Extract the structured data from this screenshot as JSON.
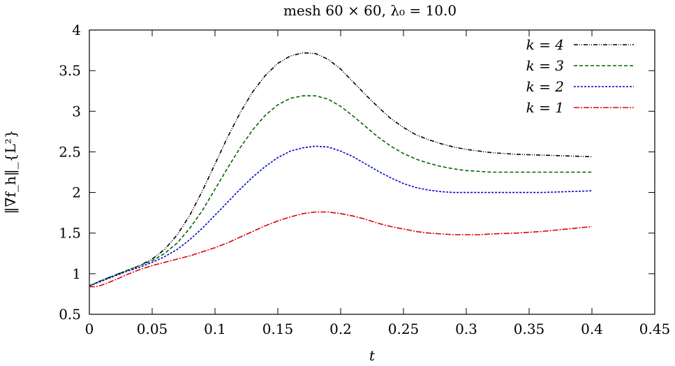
{
  "chart_data": {
    "type": "line",
    "title": "mesh 60 × 60, λ₀ = 10.0",
    "xlabel": "t",
    "ylabel": "‖∇f_h‖_{L²}",
    "xlim": [
      0,
      0.45
    ],
    "ylim": [
      0.5,
      4
    ],
    "x_ticks": [
      "0",
      "0.05",
      "0.1",
      "0.15",
      "0.2",
      "0.25",
      "0.3",
      "0.35",
      "0.4",
      "0.45"
    ],
    "y_ticks": [
      "0.5",
      "1",
      "1.5",
      "2",
      "2.5",
      "3",
      "3.5",
      "4"
    ],
    "legend_position": "top-right",
    "series": [
      {
        "name": "k = 4",
        "color": "#000000",
        "dash": "6,2,1,2,1,2",
        "points": [
          [
            0,
            0.85
          ],
          [
            0.01,
            0.92
          ],
          [
            0.02,
            0.98
          ],
          [
            0.03,
            1.04
          ],
          [
            0.04,
            1.1
          ],
          [
            0.05,
            1.18
          ],
          [
            0.06,
            1.3
          ],
          [
            0.07,
            1.48
          ],
          [
            0.08,
            1.72
          ],
          [
            0.09,
            2.02
          ],
          [
            0.1,
            2.35
          ],
          [
            0.11,
            2.68
          ],
          [
            0.12,
            2.98
          ],
          [
            0.13,
            3.24
          ],
          [
            0.14,
            3.44
          ],
          [
            0.15,
            3.59
          ],
          [
            0.16,
            3.68
          ],
          [
            0.17,
            3.72
          ],
          [
            0.18,
            3.71
          ],
          [
            0.19,
            3.64
          ],
          [
            0.2,
            3.52
          ],
          [
            0.21,
            3.36
          ],
          [
            0.22,
            3.2
          ],
          [
            0.23,
            3.05
          ],
          [
            0.24,
            2.91
          ],
          [
            0.25,
            2.8
          ],
          [
            0.26,
            2.71
          ],
          [
            0.27,
            2.65
          ],
          [
            0.28,
            2.6
          ],
          [
            0.29,
            2.56
          ],
          [
            0.3,
            2.53
          ],
          [
            0.32,
            2.49
          ],
          [
            0.34,
            2.47
          ],
          [
            0.36,
            2.46
          ],
          [
            0.38,
            2.45
          ],
          [
            0.4,
            2.44
          ]
        ]
      },
      {
        "name": "k = 3",
        "color": "#006400",
        "dash": "5,3",
        "points": [
          [
            0,
            0.85
          ],
          [
            0.01,
            0.92
          ],
          [
            0.02,
            0.98
          ],
          [
            0.03,
            1.04
          ],
          [
            0.04,
            1.1
          ],
          [
            0.05,
            1.16
          ],
          [
            0.06,
            1.25
          ],
          [
            0.07,
            1.38
          ],
          [
            0.08,
            1.56
          ],
          [
            0.09,
            1.78
          ],
          [
            0.1,
            2.04
          ],
          [
            0.11,
            2.3
          ],
          [
            0.12,
            2.55
          ],
          [
            0.13,
            2.77
          ],
          [
            0.14,
            2.95
          ],
          [
            0.15,
            3.08
          ],
          [
            0.16,
            3.16
          ],
          [
            0.17,
            3.19
          ],
          [
            0.18,
            3.19
          ],
          [
            0.19,
            3.15
          ],
          [
            0.2,
            3.06
          ],
          [
            0.21,
            2.94
          ],
          [
            0.22,
            2.81
          ],
          [
            0.23,
            2.68
          ],
          [
            0.24,
            2.57
          ],
          [
            0.25,
            2.48
          ],
          [
            0.26,
            2.41
          ],
          [
            0.27,
            2.36
          ],
          [
            0.28,
            2.32
          ],
          [
            0.29,
            2.29
          ],
          [
            0.3,
            2.27
          ],
          [
            0.32,
            2.25
          ],
          [
            0.34,
            2.25
          ],
          [
            0.36,
            2.25
          ],
          [
            0.38,
            2.25
          ],
          [
            0.4,
            2.25
          ]
        ]
      },
      {
        "name": "k = 2",
        "color": "#0000CC",
        "dash": "3,2",
        "points": [
          [
            0,
            0.85
          ],
          [
            0.01,
            0.91
          ],
          [
            0.02,
            0.97
          ],
          [
            0.03,
            1.03
          ],
          [
            0.04,
            1.08
          ],
          [
            0.05,
            1.14
          ],
          [
            0.06,
            1.21
          ],
          [
            0.07,
            1.3
          ],
          [
            0.08,
            1.42
          ],
          [
            0.09,
            1.56
          ],
          [
            0.1,
            1.72
          ],
          [
            0.11,
            1.88
          ],
          [
            0.12,
            2.04
          ],
          [
            0.13,
            2.19
          ],
          [
            0.14,
            2.32
          ],
          [
            0.15,
            2.43
          ],
          [
            0.16,
            2.51
          ],
          [
            0.17,
            2.55
          ],
          [
            0.18,
            2.57
          ],
          [
            0.19,
            2.56
          ],
          [
            0.2,
            2.51
          ],
          [
            0.21,
            2.44
          ],
          [
            0.22,
            2.35
          ],
          [
            0.23,
            2.26
          ],
          [
            0.24,
            2.18
          ],
          [
            0.25,
            2.11
          ],
          [
            0.26,
            2.06
          ],
          [
            0.27,
            2.03
          ],
          [
            0.28,
            2.01
          ],
          [
            0.29,
            2.0
          ],
          [
            0.3,
            2.0
          ],
          [
            0.32,
            2.0
          ],
          [
            0.34,
            2.0
          ],
          [
            0.36,
            2.0
          ],
          [
            0.38,
            2.01
          ],
          [
            0.4,
            2.02
          ]
        ]
      },
      {
        "name": "k = 1",
        "color": "#DD0000",
        "dash": "8,2,2,2",
        "points": [
          [
            0,
            0.84
          ],
          [
            0.005,
            0.84
          ],
          [
            0.01,
            0.86
          ],
          [
            0.02,
            0.92
          ],
          [
            0.03,
            0.99
          ],
          [
            0.04,
            1.05
          ],
          [
            0.05,
            1.1
          ],
          [
            0.06,
            1.14
          ],
          [
            0.07,
            1.18
          ],
          [
            0.08,
            1.22
          ],
          [
            0.09,
            1.27
          ],
          [
            0.1,
            1.32
          ],
          [
            0.11,
            1.38
          ],
          [
            0.12,
            1.45
          ],
          [
            0.13,
            1.52
          ],
          [
            0.14,
            1.59
          ],
          [
            0.15,
            1.65
          ],
          [
            0.16,
            1.7
          ],
          [
            0.17,
            1.74
          ],
          [
            0.18,
            1.76
          ],
          [
            0.19,
            1.76
          ],
          [
            0.2,
            1.74
          ],
          [
            0.21,
            1.71
          ],
          [
            0.22,
            1.67
          ],
          [
            0.23,
            1.62
          ],
          [
            0.24,
            1.58
          ],
          [
            0.25,
            1.55
          ],
          [
            0.26,
            1.52
          ],
          [
            0.27,
            1.5
          ],
          [
            0.28,
            1.49
          ],
          [
            0.29,
            1.48
          ],
          [
            0.3,
            1.48
          ],
          [
            0.31,
            1.48
          ],
          [
            0.32,
            1.49
          ],
          [
            0.34,
            1.5
          ],
          [
            0.36,
            1.52
          ],
          [
            0.38,
            1.55
          ],
          [
            0.4,
            1.58
          ]
        ]
      }
    ]
  }
}
